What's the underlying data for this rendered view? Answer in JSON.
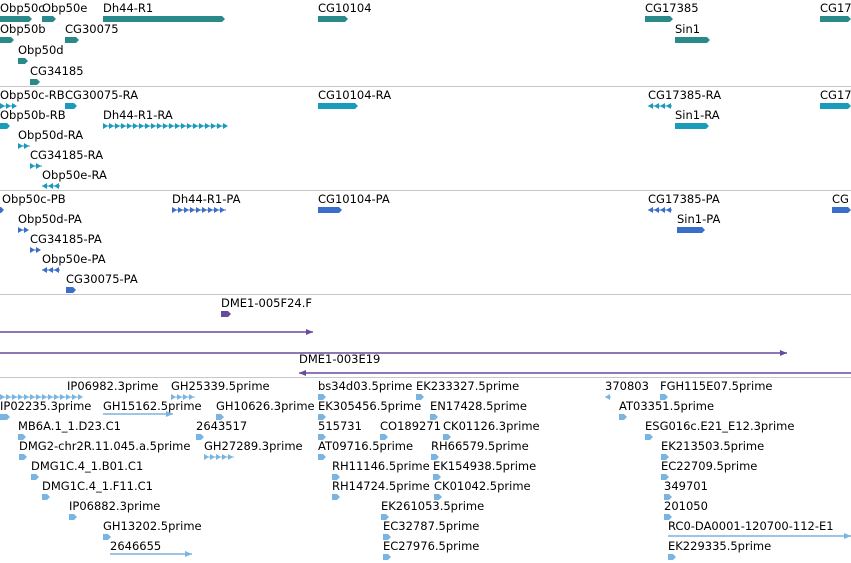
{
  "colors": {
    "gene": "#2a8a8a",
    "mrna": "#1a9bbb",
    "protein": "#3a6ec8",
    "clone": "#6a4a9a",
    "est": "#7ab4e0",
    "divider": "#c8c8c8"
  },
  "tracks": [
    {
      "id": "gene",
      "features": [
        {
          "label": "Obp50c"
        },
        {
          "label": "Obp50e"
        },
        {
          "label": "Dh44-R1"
        },
        {
          "label": "CG10104"
        },
        {
          "label": "CG17385"
        },
        {
          "label": "CG17"
        },
        {
          "label": "Obp50b"
        },
        {
          "label": "CG30075"
        },
        {
          "label": "Sin1"
        },
        {
          "label": "Obp50d"
        },
        {
          "label": "CG34185"
        }
      ]
    },
    {
      "id": "mrna",
      "features": [
        {
          "label": "Obp50c-RB"
        },
        {
          "label": "CG30075-RA"
        },
        {
          "label": "CG10104-RA"
        },
        {
          "label": "CG17385-RA"
        },
        {
          "label": "CG17"
        },
        {
          "label": "Obp50b-RB"
        },
        {
          "label": "Dh44-R1-RA"
        },
        {
          "label": "Sin1-RA"
        },
        {
          "label": "Obp50d-RA"
        },
        {
          "label": "CG34185-RA"
        },
        {
          "label": "Obp50e-RA"
        }
      ]
    },
    {
      "id": "protein",
      "features": [
        {
          "label": "Obp50c-PB"
        },
        {
          "label": "Dh44-R1-PA"
        },
        {
          "label": "CG10104-PA"
        },
        {
          "label": "CG17385-PA"
        },
        {
          "label": "CG"
        },
        {
          "label": "Obp50d-PA"
        },
        {
          "label": "Sin1-PA"
        },
        {
          "label": "CG34185-PA"
        },
        {
          "label": "Obp50e-PA"
        },
        {
          "label": "CG30075-PA"
        }
      ]
    },
    {
      "id": "clone",
      "features": [
        {
          "label": "DME1-005F24.F"
        },
        {
          "label": "DME1-003E19"
        }
      ]
    },
    {
      "id": "est",
      "features": [
        {
          "label": "IP06982.3prime"
        },
        {
          "label": "GH25339.5prime"
        },
        {
          "label": "bs34d03.5prime"
        },
        {
          "label": "EK233327.5prime"
        },
        {
          "label": "370803"
        },
        {
          "label": "FGH115E07.5prime"
        },
        {
          "label": "IP02235.3prime"
        },
        {
          "label": "GH15162.5prime"
        },
        {
          "label": "GH10626.3prime"
        },
        {
          "label": "EK305456.5prime"
        },
        {
          "label": "EN17428.5prime"
        },
        {
          "label": "AT03351.5prime"
        },
        {
          "label": "MB6A.1_1.D23.C1"
        },
        {
          "label": "2643517"
        },
        {
          "label": "515731"
        },
        {
          "label": "CO189271"
        },
        {
          "label": "CK01126.3prime"
        },
        {
          "label": "ESG016c.E21_E12.3prime"
        },
        {
          "label": "DMG2-chr2R.11.045.a.5prime"
        },
        {
          "label": "GH27289.3prime"
        },
        {
          "label": "AT09716.5prime"
        },
        {
          "label": "RH66579.5prime"
        },
        {
          "label": "EK213503.5prime"
        },
        {
          "label": "DMG1C.4_1.B01.C1"
        },
        {
          "label": "RH11146.5prime"
        },
        {
          "label": "EK154938.5prime"
        },
        {
          "label": "EC22709.5prime"
        },
        {
          "label": "DMG1C.4_1.F11.C1"
        },
        {
          "label": "RH14724.5prime"
        },
        {
          "label": "CK01042.5prime"
        },
        {
          "label": "349701"
        },
        {
          "label": "IP06882.3prime"
        },
        {
          "label": "EK261053.5prime"
        },
        {
          "label": "201050"
        },
        {
          "label": "GH13202.5prime"
        },
        {
          "label": "EC32787.5prime"
        },
        {
          "label": "RC0-DA0001-120700-112-E1"
        },
        {
          "label": "2646655"
        },
        {
          "label": "EC27976.5prime"
        },
        {
          "label": "EK229335.5prime"
        }
      ]
    }
  ]
}
